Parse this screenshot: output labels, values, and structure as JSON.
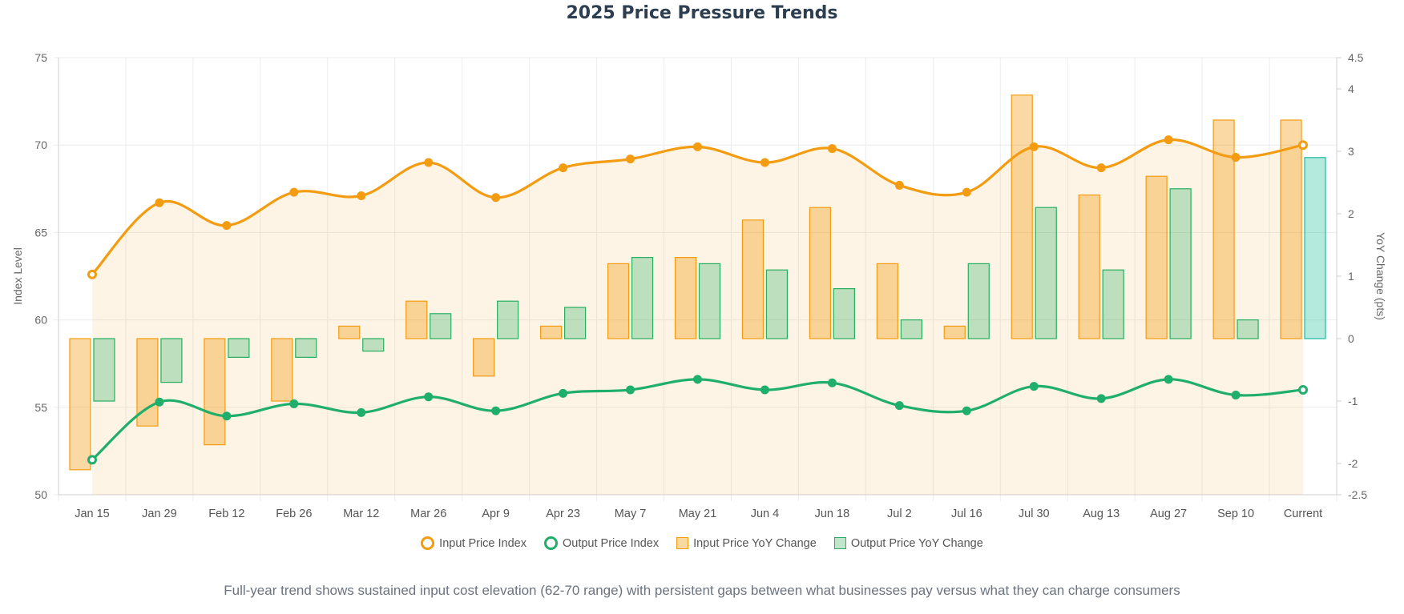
{
  "chart_data": {
    "type": "bar+line",
    "title": "2025 Price Pressure Trends",
    "categories": [
      "Jan 15",
      "Jan 29",
      "Feb 12",
      "Feb 26",
      "Mar 12",
      "Mar 26",
      "Apr 9",
      "Apr 23",
      "May 7",
      "May 21",
      "Jun 4",
      "Jun 18",
      "Jul 2",
      "Jul 16",
      "Jul 30",
      "Aug 13",
      "Aug 27",
      "Sep 10",
      "Current"
    ],
    "y_left": {
      "label": "Index Level",
      "min": 50,
      "max": 75,
      "ticks": [
        50,
        55,
        60,
        65,
        70,
        75
      ]
    },
    "y_right": {
      "label": "YoY Change (pts)",
      "min": -2.5,
      "max": 4.5,
      "ticks": [
        -2.5,
        -2,
        -1,
        0,
        1,
        2,
        3,
        4,
        4.5
      ]
    },
    "series": [
      {
        "name": "Input Price Index",
        "type": "line",
        "axis": "left",
        "color": "#f39c12",
        "filled": true,
        "values": [
          62.6,
          66.7,
          65.4,
          67.3,
          67.1,
          69.0,
          67.0,
          68.7,
          69.2,
          69.9,
          69.0,
          69.8,
          67.7,
          67.3,
          69.9,
          68.7,
          70.3,
          69.3,
          70.0
        ]
      },
      {
        "name": "Output Price Index",
        "type": "line",
        "axis": "left",
        "color": "#1fae6b",
        "values": [
          52.0,
          55.3,
          54.5,
          55.2,
          54.7,
          55.6,
          54.8,
          55.8,
          56.0,
          56.6,
          56.0,
          56.4,
          55.1,
          54.8,
          56.2,
          55.5,
          56.6,
          55.7,
          56.0
        ]
      },
      {
        "name": "Input Price YoY Change",
        "type": "bar",
        "axis": "right",
        "color": "#f39c12",
        "values": [
          -2.1,
          -1.4,
          -1.7,
          -1.0,
          0.2,
          0.6,
          -0.6,
          0.2,
          1.2,
          1.3,
          1.9,
          2.1,
          1.2,
          0.2,
          3.9,
          2.3,
          2.6,
          3.5,
          3.5
        ]
      },
      {
        "name": "Output Price YoY Change",
        "type": "bar",
        "axis": "right",
        "color": "#27ae60",
        "values": [
          -1.0,
          -0.7,
          -0.3,
          -0.3,
          -0.2,
          0.4,
          0.6,
          0.5,
          1.3,
          1.2,
          1.1,
          0.8,
          0.3,
          1.2,
          2.1,
          1.1,
          2.4,
          0.3,
          2.9
        ]
      }
    ]
  },
  "legend": {
    "input_index": "Input Price Index",
    "output_index": "Output Price Index",
    "input_yoy": "Input Price YoY Change",
    "output_yoy": "Output Price YoY Change"
  },
  "caption": "Full-year trend shows sustained input cost elevation (62-70 range) with persistent gaps between what businesses pay versus what they can charge consumers"
}
